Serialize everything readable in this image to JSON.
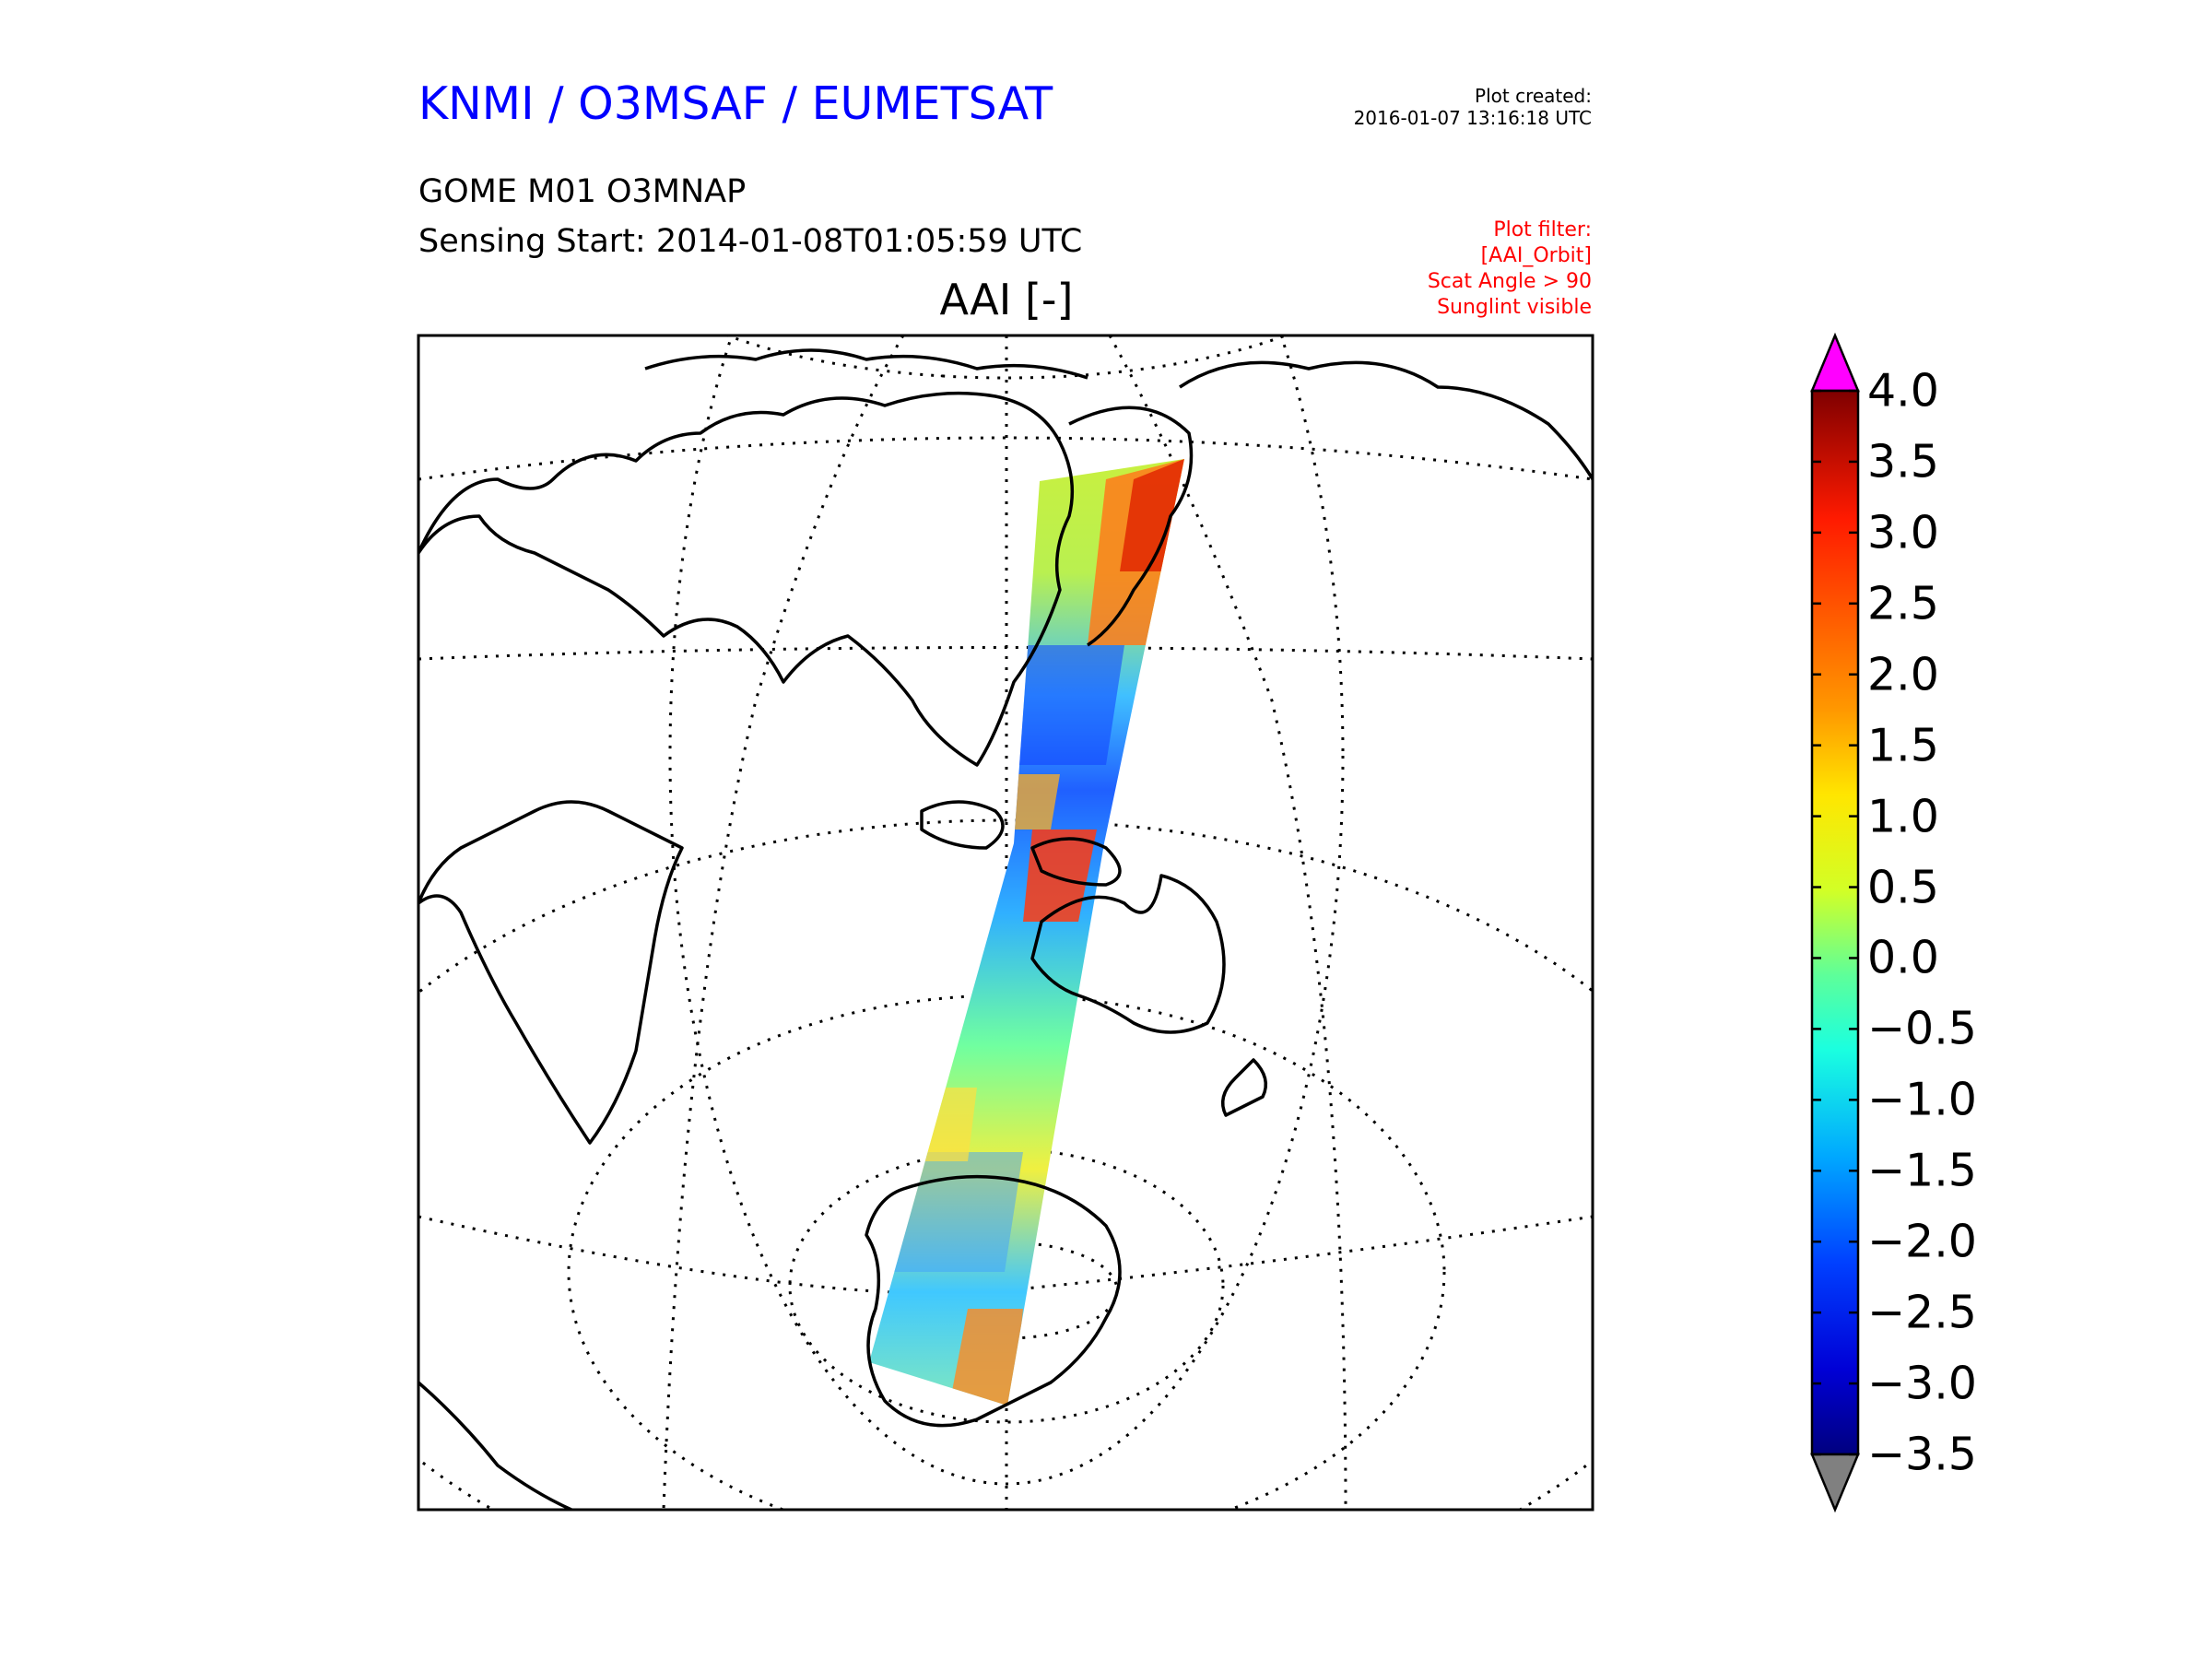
{
  "header": {
    "org_title": "KNMI / O3MSAF / EUMETSAT",
    "created_label": "Plot created:",
    "created_time": "2016-01-07 13:16:18 UTC",
    "product": "GOME M01 O3MNAP",
    "sensing": "Sensing Start: 2014-01-08T01:05:59 UTC",
    "filter_lines": [
      "Plot filter:",
      "[AAI_Orbit]",
      "Scat Angle > 90",
      "Sunglint visible"
    ]
  },
  "map": {
    "title": "AAI [-]",
    "swath_colors": [
      "#00ccff",
      "#33ff99",
      "#ffff00",
      "#ff9900",
      "#ff3300",
      "#0044ff"
    ]
  },
  "colorbar": {
    "labels": [
      "4.0",
      "3.5",
      "3.0",
      "2.5",
      "2.0",
      "1.5",
      "1.0",
      "0.5",
      "0.0",
      "−0.5",
      "−1.0",
      "−1.5",
      "−2.0",
      "−2.5",
      "−3.0",
      "−3.5"
    ],
    "min": -3.5,
    "max": 4.0,
    "over_color": "#ff00ff",
    "under_color": "#808080"
  }
}
